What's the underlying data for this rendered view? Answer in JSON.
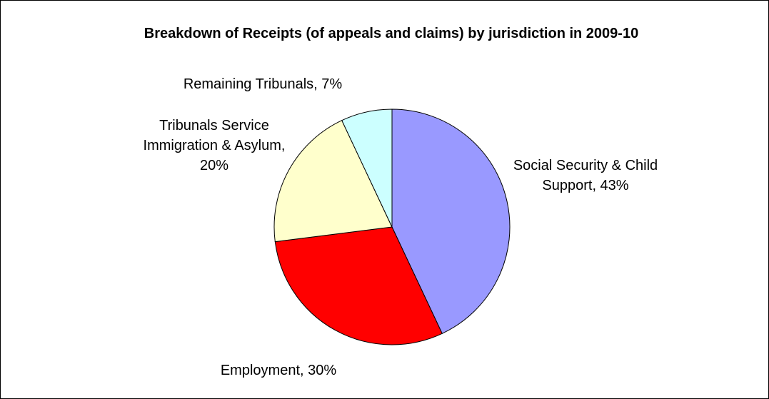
{
  "chart_data": {
    "type": "pie",
    "title": "Breakdown of Receipts (of appeals and claims) by jurisdiction in 2009-10",
    "values": [
      43,
      30,
      20,
      7
    ],
    "value_labels": [
      "Social Security & Child Support, 43%",
      "Employment, 30%",
      "Tribunals Service Immigration & Asylum, 20%",
      "Remaining Tribunals, 7%"
    ],
    "colors": [
      "#9999ff",
      "#ff0000",
      "#ffffcc",
      "#ccffff"
    ]
  }
}
